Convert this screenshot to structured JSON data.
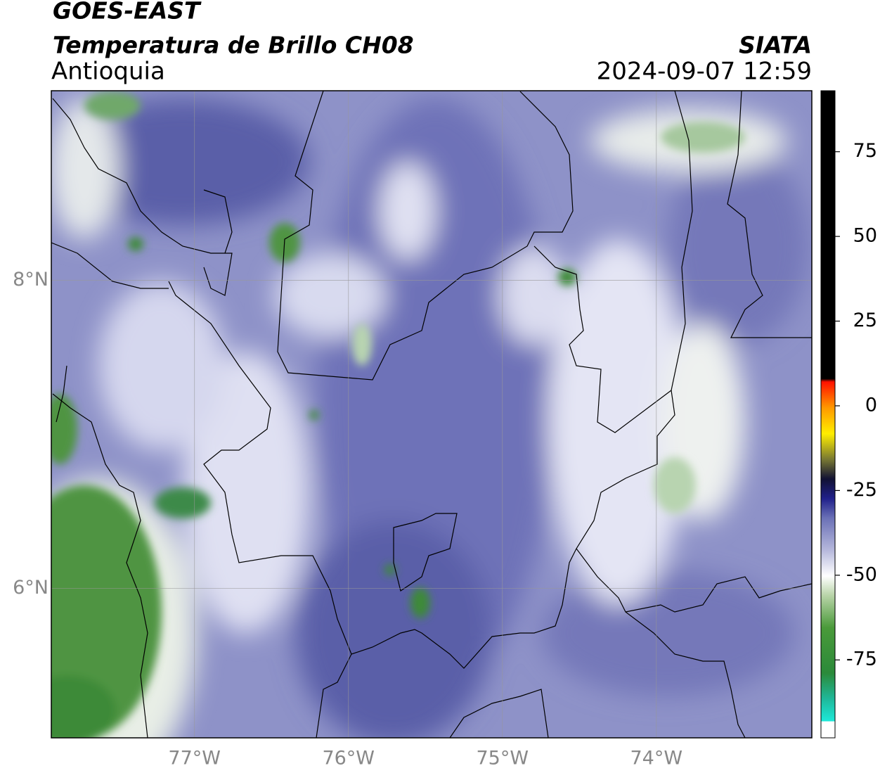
{
  "header": {
    "title": "GOES-EAST",
    "subtitle": "Temperatura de Brillo CH08",
    "region": "Antioquia",
    "source": "SIATA",
    "timestamp": "2024-09-07 12:59"
  },
  "map": {
    "xlim": [
      -77.93,
      -72.99
    ],
    "ylim": [
      5.03,
      9.23
    ],
    "xticks": [
      {
        "value": -77,
        "label": "77°W"
      },
      {
        "value": -76,
        "label": "76°W"
      },
      {
        "value": -75,
        "label": "75°W"
      },
      {
        "value": -74,
        "label": "74°W"
      }
    ],
    "yticks": [
      {
        "value": 8,
        "label": "8°N"
      },
      {
        "value": 6,
        "label": "6°N"
      }
    ],
    "grid": true
  },
  "colorbar": {
    "lim": [
      -98,
      93
    ],
    "ticks": [
      -75,
      -50,
      -25,
      0,
      25,
      50,
      75
    ]
  }
}
